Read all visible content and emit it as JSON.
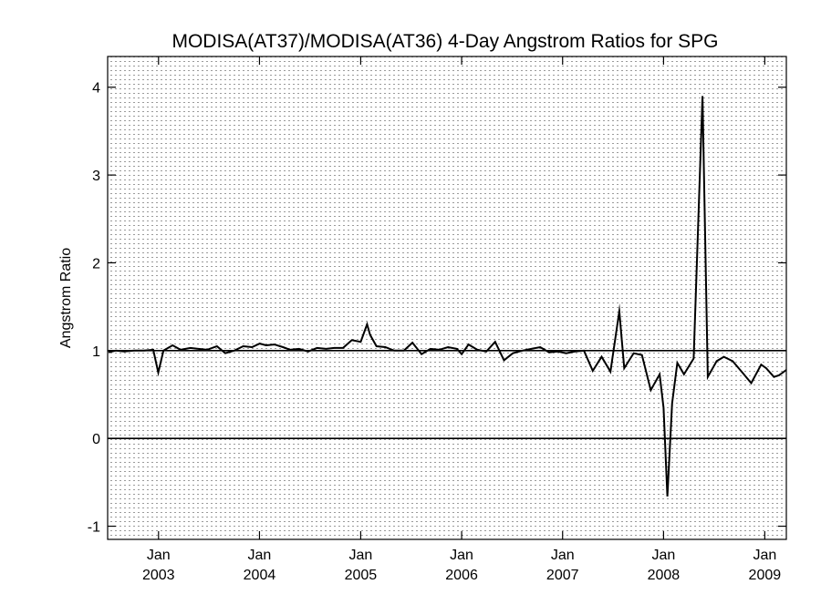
{
  "chart_data": {
    "type": "line",
    "title": "MODISA(AT37)/MODISA(AT36) 4-Day Angstrom Ratios for SPG",
    "xlabel": "",
    "ylabel": "Angstrom Ratio",
    "ylim": [
      -1.15,
      4.35
    ],
    "yticks": [
      -1,
      0,
      1,
      2,
      3,
      4
    ],
    "xlim": [
      "2002-07-01",
      "2009-03-20"
    ],
    "xticks": [
      {
        "date": "2003-01-01",
        "month": "Jan",
        "year": "2003"
      },
      {
        "date": "2004-01-01",
        "month": "Jan",
        "year": "2004"
      },
      {
        "date": "2005-01-01",
        "month": "Jan",
        "year": "2005"
      },
      {
        "date": "2006-01-01",
        "month": "Jan",
        "year": "2006"
      },
      {
        "date": "2007-01-01",
        "month": "Jan",
        "year": "2007"
      },
      {
        "date": "2008-01-01",
        "month": "Jan",
        "year": "2008"
      },
      {
        "date": "2009-01-01",
        "month": "Jan",
        "year": "2009"
      }
    ],
    "grid": "dotted",
    "reference_lines": [
      0,
      1
    ],
    "series": [
      {
        "x": [
          "2002-07-04",
          "2002-07-31",
          "2002-08-30",
          "2002-10-05",
          "2002-11-09",
          "2002-12-13",
          "2002-12-31",
          "2003-01-19",
          "2003-02-21",
          "2003-03-22",
          "2003-04-26",
          "2003-05-25",
          "2003-06-26",
          "2003-07-31",
          "2003-08-30",
          "2003-10-02",
          "2003-11-03",
          "2003-12-05",
          "2004-01-02",
          "2004-01-25",
          "2004-02-24",
          "2004-03-26",
          "2004-04-21",
          "2004-05-23",
          "2004-06-25",
          "2004-07-27",
          "2004-08-29",
          "2004-09-27",
          "2004-10-29",
          "2004-11-30",
          "2005-01-01",
          "2005-01-24",
          "2005-02-04",
          "2005-02-27",
          "2005-03-31",
          "2005-05-02",
          "2005-06-06",
          "2005-07-07",
          "2005-08-09",
          "2005-09-10",
          "2005-10-12",
          "2005-11-13",
          "2005-12-15",
          "2006-01-01",
          "2006-01-26",
          "2006-02-27",
          "2006-03-31",
          "2006-05-02",
          "2006-06-03",
          "2006-07-05",
          "2006-08-09",
          "2006-09-10",
          "2006-10-12",
          "2006-11-13",
          "2006-12-15",
          "2007-01-14",
          "2007-02-15",
          "2007-03-19",
          "2007-04-20",
          "2007-05-22",
          "2007-06-23",
          "2007-07-25",
          "2007-08-12",
          "2007-09-15",
          "2007-10-15",
          "2007-11-16",
          "2007-12-18",
          "2008-01-01",
          "2008-01-15",
          "2008-02-01",
          "2008-02-20",
          "2008-03-15",
          "2008-04-19",
          "2008-05-21",
          "2008-06-09",
          "2008-07-11",
          "2008-08-06",
          "2008-09-07",
          "2008-10-12",
          "2008-11-13",
          "2008-12-19",
          "2009-01-06",
          "2009-02-03",
          "2009-02-22",
          "2009-03-20"
        ],
        "y": [
          0.98,
          1.0,
          0.99,
          1.0,
          1.0,
          1.01,
          0.75,
          1.0,
          1.06,
          1.01,
          1.03,
          1.02,
          1.01,
          1.05,
          0.97,
          1.0,
          1.05,
          1.04,
          1.08,
          1.06,
          1.07,
          1.04,
          1.01,
          1.02,
          0.99,
          1.03,
          1.02,
          1.03,
          1.03,
          1.12,
          1.1,
          1.3,
          1.18,
          1.05,
          1.04,
          1.0,
          1.0,
          1.09,
          0.96,
          1.02,
          1.01,
          1.04,
          1.02,
          0.96,
          1.07,
          1.01,
          0.99,
          1.1,
          0.89,
          0.97,
          1.0,
          1.02,
          1.04,
          0.98,
          0.99,
          0.97,
          0.99,
          1.0,
          0.77,
          0.93,
          0.76,
          1.45,
          0.8,
          0.97,
          0.95,
          0.55,
          0.73,
          0.35,
          -0.66,
          0.4,
          0.86,
          0.73,
          0.91,
          3.9,
          0.7,
          0.88,
          0.93,
          0.88,
          0.75,
          0.63,
          0.84,
          0.8,
          0.7,
          0.72,
          0.78
        ]
      }
    ]
  }
}
